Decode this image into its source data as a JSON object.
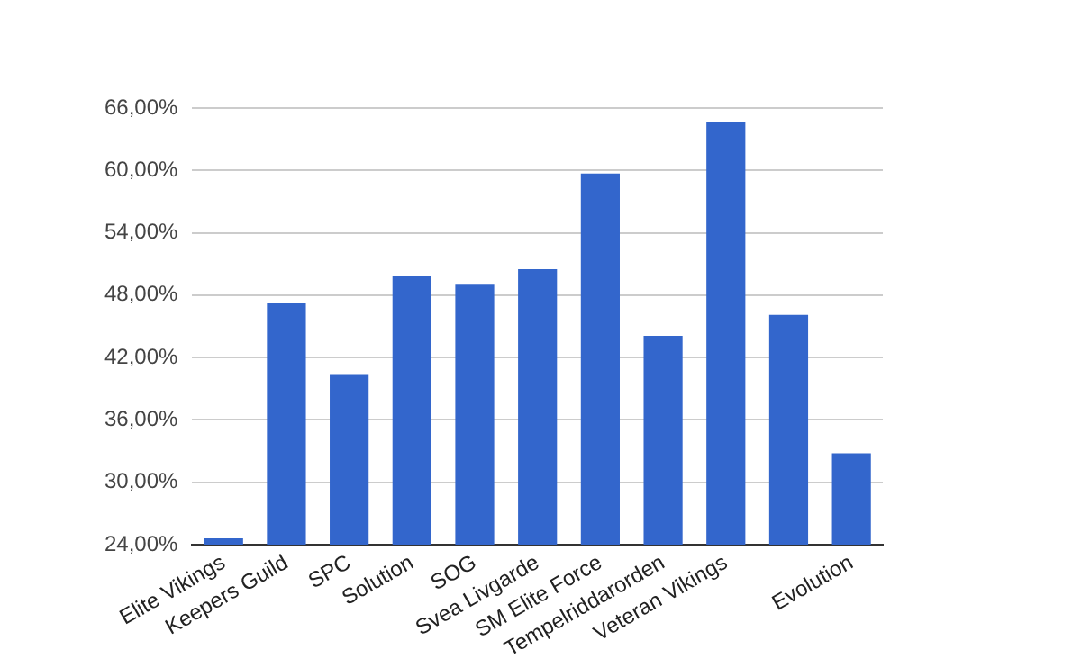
{
  "chart_data": {
    "type": "bar",
    "categories": [
      "Elite Vikings",
      "Keepers Guild",
      "SPC",
      "Solution",
      "SOG",
      "Svea Livgarde",
      "SM Elite Force",
      "Tempelriddarorden",
      "Veteran Vikings",
      null,
      "Evolution"
    ],
    "values": [
      24.6,
      47.2,
      40.4,
      49.8,
      49.0,
      50.5,
      59.7,
      44.1,
      64.7,
      46.1,
      32.8
    ],
    "color": "#3366cc",
    "ylim": [
      24,
      66
    ],
    "yticks": [
      {
        "value": 24,
        "label": "24,00%"
      },
      {
        "value": 30,
        "label": "30,00%"
      },
      {
        "value": 36,
        "label": "36,00%"
      },
      {
        "value": 42,
        "label": "42,00%"
      },
      {
        "value": 48,
        "label": "48,00%"
      },
      {
        "value": 54,
        "label": "54,00%"
      },
      {
        "value": 60,
        "label": "60,00%"
      },
      {
        "value": 66,
        "label": "66,00%"
      }
    ],
    "grid": "y",
    "legend": false
  }
}
